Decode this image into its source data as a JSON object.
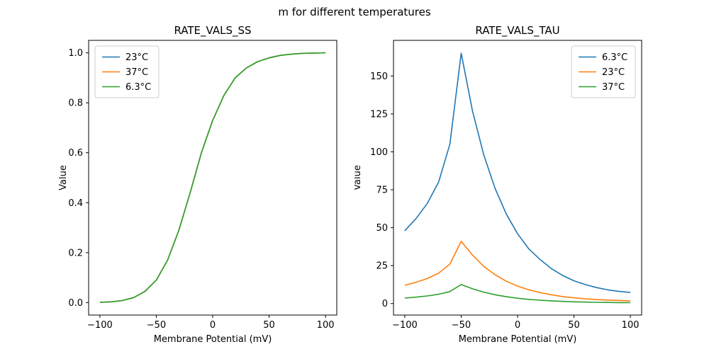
{
  "figure": {
    "suptitle": "m for different temperatures"
  },
  "colors": {
    "series_blue": "#1f77b4",
    "series_orange": "#ff7f0e",
    "series_green": "#2ca02c",
    "legend_border": "#cccccc",
    "spine": "#000000"
  },
  "chart_data": [
    {
      "type": "line",
      "title": "RATE_VALS_SS",
      "xlabel": "Membrane Potential (mV)",
      "ylabel": "Value",
      "xlim": [
        -110,
        110
      ],
      "ylim": [
        -0.05,
        1.05
      ],
      "xticks": [
        -100,
        -50,
        0,
        50,
        100
      ],
      "xtick_labels": [
        "−100",
        "−50",
        "0",
        "50",
        "100"
      ],
      "yticks": [
        0.0,
        0.2,
        0.4,
        0.6,
        0.8,
        1.0
      ],
      "ytick_labels": [
        "0.0",
        "0.2",
        "0.4",
        "0.6",
        "0.8",
        "1.0"
      ],
      "legend_position": "upper-left",
      "grid": false,
      "x": [
        -100,
        -90,
        -80,
        -70,
        -60,
        -50,
        -40,
        -30,
        -20,
        -10,
        0,
        10,
        20,
        30,
        40,
        50,
        60,
        70,
        80,
        90,
        100
      ],
      "series": [
        {
          "name": "23°C",
          "color": "#1f77b4",
          "values": [
            0.001,
            0.003,
            0.008,
            0.02,
            0.045,
            0.09,
            0.17,
            0.29,
            0.44,
            0.6,
            0.73,
            0.83,
            0.9,
            0.94,
            0.965,
            0.98,
            0.99,
            0.995,
            0.998,
            0.999,
            1.0
          ]
        },
        {
          "name": "37°C",
          "color": "#ff7f0e",
          "values": [
            0.001,
            0.003,
            0.008,
            0.02,
            0.045,
            0.09,
            0.17,
            0.29,
            0.44,
            0.6,
            0.73,
            0.83,
            0.9,
            0.94,
            0.965,
            0.98,
            0.99,
            0.995,
            0.998,
            0.999,
            1.0
          ]
        },
        {
          "name": "6.3°C",
          "color": "#2ca02c",
          "values": [
            0.001,
            0.003,
            0.008,
            0.02,
            0.045,
            0.09,
            0.17,
            0.29,
            0.44,
            0.6,
            0.73,
            0.83,
            0.9,
            0.94,
            0.965,
            0.98,
            0.99,
            0.995,
            0.998,
            0.999,
            1.0
          ]
        }
      ]
    },
    {
      "type": "line",
      "title": "RATE_VALS_TAU",
      "xlabel": "Membrane Potential (mV)",
      "ylabel": "Value",
      "xlim": [
        -110,
        110
      ],
      "ylim": [
        -7.6,
        173.5
      ],
      "xticks": [
        -100,
        -50,
        0,
        50,
        100
      ],
      "xtick_labels": [
        "−100",
        "−50",
        "0",
        "50",
        "100"
      ],
      "yticks": [
        0,
        25,
        50,
        75,
        100,
        125,
        150
      ],
      "ytick_labels": [
        "0",
        "25",
        "50",
        "75",
        "100",
        "125",
        "150"
      ],
      "legend_position": "upper-right",
      "grid": false,
      "x": [
        -100,
        -90,
        -80,
        -70,
        -60,
        -50,
        -40,
        -30,
        -20,
        -10,
        0,
        10,
        20,
        30,
        40,
        50,
        60,
        70,
        80,
        90,
        100
      ],
      "series": [
        {
          "name": "6.3°C",
          "color": "#1f77b4",
          "values": [
            48,
            56,
            66,
            80,
            105,
            165,
            127,
            98,
            76,
            59,
            46,
            36,
            29,
            23,
            18.5,
            15,
            12.5,
            10.5,
            9,
            8,
            7.3
          ]
        },
        {
          "name": "23°C",
          "color": "#ff7f0e",
          "values": [
            12,
            14,
            16.5,
            20,
            26,
            41,
            32,
            24.5,
            19,
            14.7,
            11.5,
            9,
            7.2,
            5.8,
            4.6,
            3.8,
            3.1,
            2.6,
            2.3,
            2.0,
            1.8
          ]
        },
        {
          "name": "37°C",
          "color": "#2ca02c",
          "values": [
            3.6,
            4.2,
            5.0,
            6.1,
            7.9,
            12.5,
            9.7,
            7.5,
            5.8,
            4.5,
            3.5,
            2.7,
            2.2,
            1.8,
            1.4,
            1.15,
            0.95,
            0.8,
            0.7,
            0.6,
            0.55
          ]
        }
      ]
    }
  ]
}
